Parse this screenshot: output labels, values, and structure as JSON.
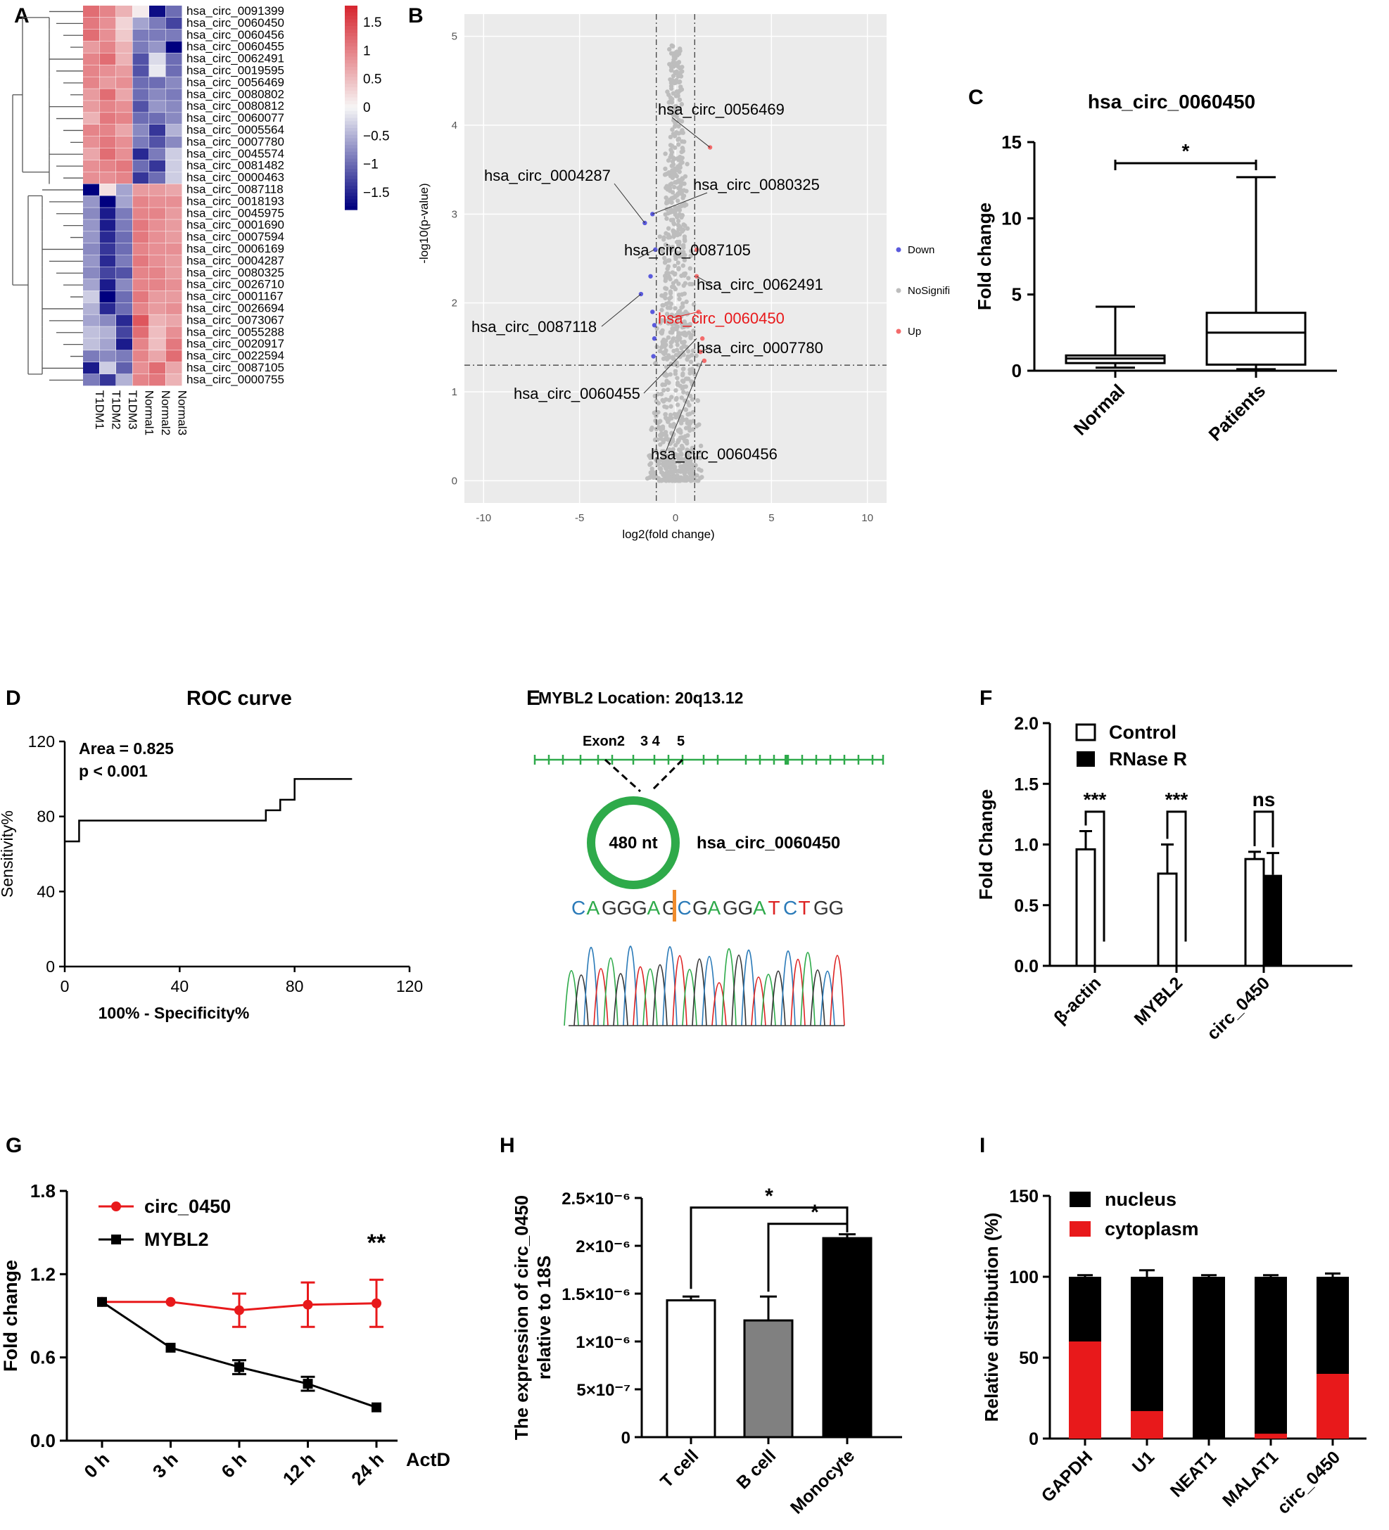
{
  "colors": {
    "heat_high": "#d7191c",
    "heat_mid": "#f7f7f7",
    "heat_low": "#00007f",
    "red": "#e8191b",
    "blue": "#5a5adc",
    "grey": "#bdbdbd",
    "green": "#2eaa4a",
    "orange": "#f08c2c",
    "gridbg": "#ebebeb"
  },
  "panels": {
    "A": "A",
    "B": "B",
    "C": "C",
    "D": "D",
    "E": "E",
    "F": "F",
    "G": "G",
    "H": "H",
    "I": "I"
  },
  "chart_data": [
    {
      "panel": "A",
      "type": "heatmap",
      "rows": [
        "hsa_circ_0091399",
        "hsa_circ_0060450",
        "hsa_circ_0060456",
        "hsa_circ_0060455",
        "hsa_circ_0062491",
        "hsa_circ_0019595",
        "hsa_circ_0056469",
        "hsa_circ_0080802",
        "hsa_circ_0080812",
        "hsa_circ_0060077",
        "hsa_circ_0005564",
        "hsa_circ_0007780",
        "hsa_circ_0045574",
        "hsa_circ_0081482",
        "hsa_circ_0000463",
        "hsa_circ_0087118",
        "hsa_circ_0018193",
        "hsa_circ_0045975",
        "hsa_circ_0001690",
        "hsa_circ_0007594",
        "hsa_circ_0006169",
        "hsa_circ_0004287",
        "hsa_circ_0080325",
        "hsa_circ_0026710",
        "hsa_circ_0001167",
        "hsa_circ_0026694",
        "hsa_circ_0073067",
        "hsa_circ_0055288",
        "hsa_circ_0020917",
        "hsa_circ_0022594",
        "hsa_circ_0087105",
        "hsa_circ_0000755"
      ],
      "columns": [
        "T1DM1",
        "T1DM2",
        "T1DM3",
        "Normal1",
        "Normal2",
        "Normal3"
      ],
      "values": [
        [
          1.2,
          1.0,
          0.6,
          0.1,
          -1.7,
          -1.0
        ],
        [
          1.1,
          0.9,
          0.3,
          -0.6,
          -0.9,
          -1.3
        ],
        [
          1.2,
          0.9,
          0.4,
          -0.9,
          -0.9,
          -0.9
        ],
        [
          0.8,
          1.0,
          0.6,
          -0.9,
          -0.7,
          -1.8
        ],
        [
          1.0,
          1.2,
          0.6,
          -1.2,
          -0.2,
          -1.0
        ],
        [
          1.0,
          0.9,
          0.8,
          -1.2,
          -0.1,
          -1.0
        ],
        [
          1.0,
          0.8,
          0.9,
          -1.0,
          -1.0,
          -0.8
        ],
        [
          0.8,
          1.2,
          0.7,
          -1.0,
          -0.8,
          -0.9
        ],
        [
          0.8,
          1.0,
          0.9,
          -1.2,
          -0.7,
          -0.8
        ],
        [
          0.6,
          1.1,
          1.0,
          -1.0,
          -1.0,
          -0.8
        ],
        [
          1.0,
          1.0,
          0.7,
          -0.8,
          -1.4,
          -0.5
        ],
        [
          0.9,
          1.1,
          0.9,
          -0.9,
          -1.2,
          -0.8
        ],
        [
          0.7,
          1.2,
          0.9,
          -1.5,
          -0.9,
          -0.3
        ],
        [
          0.9,
          1.0,
          1.1,
          -1.0,
          -1.4,
          -0.3
        ],
        [
          0.9,
          0.9,
          1.0,
          -1.4,
          -1.0,
          -0.3
        ],
        [
          -1.8,
          0.2,
          -0.6,
          0.8,
          0.8,
          0.7
        ],
        [
          -0.7,
          -1.8,
          -0.6,
          1.0,
          0.9,
          0.9
        ],
        [
          -0.8,
          -1.6,
          -0.9,
          1.0,
          1.0,
          0.8
        ],
        [
          -0.7,
          -1.6,
          -0.9,
          1.1,
          0.9,
          0.8
        ],
        [
          -0.7,
          -1.5,
          -1.0,
          1.1,
          0.9,
          0.8
        ],
        [
          -0.8,
          -1.4,
          -1.0,
          1.0,
          0.9,
          0.9
        ],
        [
          -0.7,
          -1.5,
          -0.9,
          1.1,
          0.9,
          0.8
        ],
        [
          -0.8,
          -1.3,
          -1.2,
          1.0,
          1.0,
          0.8
        ],
        [
          -0.6,
          -1.6,
          -0.8,
          1.0,
          1.0,
          0.9
        ],
        [
          -0.3,
          -1.8,
          -1.0,
          1.1,
          0.8,
          0.8
        ],
        [
          -0.5,
          -1.5,
          -1.0,
          1.0,
          0.8,
          0.9
        ],
        [
          -0.6,
          -0.8,
          -1.5,
          1.4,
          0.6,
          0.7
        ],
        [
          -0.4,
          -0.5,
          -1.3,
          1.2,
          0.5,
          0.9
        ],
        [
          -0.4,
          -0.6,
          -1.6,
          1.0,
          0.5,
          1.1
        ],
        [
          -0.9,
          -0.8,
          -0.9,
          1.0,
          0.7,
          1.2
        ],
        [
          -1.6,
          -0.3,
          -1.1,
          0.9,
          1.2,
          0.7
        ],
        [
          -0.9,
          -1.4,
          -0.5,
          1.0,
          1.1,
          0.6
        ]
      ],
      "legend_ticks": [
        "1.5",
        "1",
        "0.5",
        "0",
        "−0.5",
        "−1",
        "−1.5"
      ]
    },
    {
      "panel": "B",
      "type": "scatter",
      "xlabel": "log2(fold change)",
      "ylabel": "-log10(p-value)",
      "xticks": [
        "-10",
        "-5",
        "0",
        "5",
        "10"
      ],
      "yticks": [
        "0",
        "1",
        "2",
        "3",
        "4",
        "5"
      ],
      "legend": [
        "Down",
        "NoSignifi",
        "Up"
      ],
      "annotations": [
        "hsa_circ_0056469",
        "hsa_circ_0004287",
        "hsa_circ_0080325",
        "hsa_circ_0087105",
        "hsa_circ_0062491",
        "hsa_circ_0087118",
        "hsa_circ_0060450",
        "hsa_circ_0007780",
        "hsa_circ_0060455",
        "hsa_circ_0060456"
      ],
      "down_points": [
        [
          -1.8,
          2.1
        ],
        [
          -1.6,
          2.9
        ],
        [
          -1.3,
          2.3
        ],
        [
          -1.2,
          1.9
        ],
        [
          -1.1,
          1.6
        ],
        [
          -1.15,
          1.4
        ],
        [
          -1.05,
          2.6
        ],
        [
          -1.2,
          3.0
        ],
        [
          -1.1,
          1.75
        ]
      ],
      "up_points": [
        [
          1.8,
          3.75
        ],
        [
          1.1,
          2.3
        ],
        [
          1.2,
          1.9
        ],
        [
          1.4,
          1.6
        ],
        [
          1.3,
          1.45
        ],
        [
          1.5,
          1.35
        ],
        [
          1.1,
          2.6
        ]
      ]
    },
    {
      "panel": "C",
      "type": "box",
      "title": "hsa_circ_0060450",
      "ylabel": "Fold change",
      "categories": [
        "Normal",
        "Patients"
      ],
      "yticks": [
        "0",
        "5",
        "10",
        "15"
      ],
      "boxes": [
        {
          "min": 0.2,
          "q1": 0.5,
          "median": 0.8,
          "q3": 1.0,
          "max": 4.2
        },
        {
          "min": 0.1,
          "q1": 0.4,
          "median": 2.5,
          "q3": 3.8,
          "max": 12.7
        }
      ],
      "sig": "*"
    },
    {
      "panel": "D",
      "type": "line",
      "title": "ROC curve",
      "xlabel": "100% - Specificity%",
      "ylabel": "Sensitivity%",
      "xticks": [
        "0",
        "40",
        "80",
        "120"
      ],
      "yticks": [
        "0",
        "40",
        "80",
        "120"
      ],
      "area": "Area = 0.825",
      "p": "p < 0.001",
      "points": [
        [
          0,
          66.7
        ],
        [
          1.5,
          66.7
        ],
        [
          1.5,
          66.7
        ],
        [
          5,
          66.7
        ],
        [
          5,
          77.8
        ],
        [
          70,
          77.8
        ],
        [
          70,
          83.3
        ],
        [
          75,
          83.3
        ],
        [
          75,
          88.9
        ],
        [
          80,
          88.9
        ],
        [
          80,
          100
        ],
        [
          100,
          100
        ]
      ]
    },
    {
      "panel": "F",
      "type": "bar",
      "ylabel": "Fold Change",
      "categories": [
        "β-actin",
        "MYBL2",
        "circ_0450"
      ],
      "yticks": [
        "0.0",
        "0.5",
        "1.0",
        "1.5",
        "2.0"
      ],
      "legend": [
        "Control",
        "RNase R"
      ],
      "series": [
        {
          "name": "Control",
          "values": [
            0.96,
            0.76,
            0.88
          ],
          "err": [
            0.15,
            0.24,
            0.06
          ]
        },
        {
          "name": "RNase R",
          "values": [
            0,
            0,
            0.75
          ],
          "err": [
            0,
            0,
            0.18
          ]
        }
      ],
      "sig": [
        "***",
        "***",
        "ns"
      ]
    },
    {
      "panel": "G",
      "type": "line",
      "ylabel": "Fold change",
      "xlabel": "ActD",
      "categories": [
        "0 h",
        "3 h",
        "6 h",
        "12 h",
        "24 h"
      ],
      "yticks": [
        "0.0",
        "0.6",
        "1.2",
        "1.8"
      ],
      "series": [
        {
          "name": "circ_0450",
          "values": [
            1.0,
            1.0,
            0.94,
            0.98,
            0.99
          ],
          "err": [
            0,
            0.02,
            0.12,
            0.16,
            0.17
          ]
        },
        {
          "name": "MYBL2",
          "values": [
            1.0,
            0.67,
            0.53,
            0.41,
            0.24
          ],
          "err": [
            0,
            0.02,
            0.05,
            0.05,
            0.02
          ]
        }
      ],
      "sig": "**"
    },
    {
      "panel": "H",
      "type": "bar",
      "ylabel": "The expression of circ_0450 relative to 18S",
      "categories": [
        "T cell",
        "B cell",
        "Monocyte"
      ],
      "yticks": [
        "0",
        "5×10⁻⁷",
        "1×10⁻⁶",
        "1.5×10⁻⁶",
        "2×10⁻⁶",
        "2.5×10⁻⁶"
      ],
      "values": [
        1.43,
        1.22,
        2.08
      ],
      "err": [
        0.04,
        0.25,
        0.04
      ],
      "sig": [
        "*",
        "*"
      ]
    },
    {
      "panel": "I",
      "type": "bar",
      "ylabel": "Relative distribution (%)",
      "categories": [
        "GAPDH",
        "U1",
        "NEAT1",
        "MALAT1",
        "circ_0450"
      ],
      "yticks": [
        "0",
        "50",
        "100",
        "150"
      ],
      "legend": [
        "nucleus",
        "cytoplasm"
      ],
      "cytoplasm": [
        60,
        17,
        0,
        3,
        40
      ],
      "total": [
        100,
        100,
        100,
        100,
        100
      ],
      "err": [
        1,
        4,
        1,
        1,
        2
      ]
    }
  ],
  "panel_e": {
    "title": "MYBL2 Location: 20q13.12",
    "exons": [
      "Exon2",
      "3 4",
      "5"
    ],
    "circ_len": "480 nt",
    "circ_name": "hsa_circ_0060450",
    "sequence": [
      [
        "C",
        "#2a7ab8"
      ],
      [
        "A",
        "#2eaa4a"
      ],
      [
        "G",
        "#333"
      ],
      [
        "G",
        "#333"
      ],
      [
        "G",
        "#333"
      ],
      [
        "A",
        "#2eaa4a"
      ],
      [
        "G",
        "#333"
      ],
      [
        "C",
        "#2a7ab8"
      ],
      [
        "G",
        "#333"
      ],
      [
        "A",
        "#2eaa4a"
      ],
      [
        "G",
        "#333"
      ],
      [
        "G",
        "#333"
      ],
      [
        "A",
        "#2eaa4a"
      ],
      [
        "T",
        "#d22"
      ],
      [
        "C",
        "#2a7ab8"
      ],
      [
        "T",
        "#d22"
      ],
      [
        "G",
        "#333"
      ],
      [
        "G",
        "#333"
      ]
    ]
  }
}
